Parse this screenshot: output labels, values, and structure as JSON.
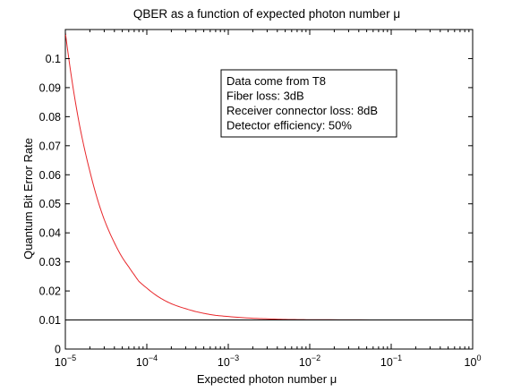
{
  "chart_data": {
    "type": "line",
    "title": "QBER as a function of expected photon number μ",
    "xlabel": "Expected photon number μ",
    "ylabel": "Quantum Bit Error Rate",
    "xscale": "log",
    "xlim": [
      1e-05,
      1
    ],
    "ylim": [
      0,
      0.11
    ],
    "x_ticks": [
      {
        "base": "10",
        "exp": "−5"
      },
      {
        "base": "10",
        "exp": "−4"
      },
      {
        "base": "10",
        "exp": "−3"
      },
      {
        "base": "10",
        "exp": "−2"
      },
      {
        "base": "10",
        "exp": "−1"
      },
      {
        "base": "10",
        "exp": "0"
      }
    ],
    "y_ticks": [
      "0",
      "0.01",
      "0.02",
      "0.03",
      "0.04",
      "0.05",
      "0.06",
      "0.07",
      "0.08",
      "0.09",
      "0.1"
    ],
    "grid": false,
    "series": [
      {
        "color": "#e8272b",
        "x": [
          1e-05,
          1.25e-05,
          1.5e-05,
          2e-05,
          2.5e-05,
          3e-05,
          4e-05,
          5e-05,
          6e-05,
          7e-05,
          8e-05,
          0.0001,
          0.00015,
          0.0002,
          0.0003,
          0.0005,
          0.0007,
          0.001,
          0.002,
          0.003,
          0.005,
          0.01,
          0.1,
          1
        ],
        "values": [
          0.109,
          0.0896,
          0.0768,
          0.0612,
          0.0512,
          0.0446,
          0.0366,
          0.0315,
          0.0283,
          0.0256,
          0.0233,
          0.021,
          0.0174,
          0.0156,
          0.0139,
          0.0123,
          0.0116,
          0.0112,
          0.0106,
          0.0104,
          0.0102,
          0.0101,
          0.01,
          0.01
        ]
      },
      {
        "color": "#000000",
        "x": [
          1e-05,
          1
        ],
        "values": [
          0.01,
          0.01
        ]
      }
    ],
    "annotation": {
      "position": "upper-right",
      "lines": [
        "Data come from T8",
        "Fiber loss: 3dB",
        "Receiver connector loss: 8dB",
        "Detector efficiency: 50%"
      ]
    }
  }
}
